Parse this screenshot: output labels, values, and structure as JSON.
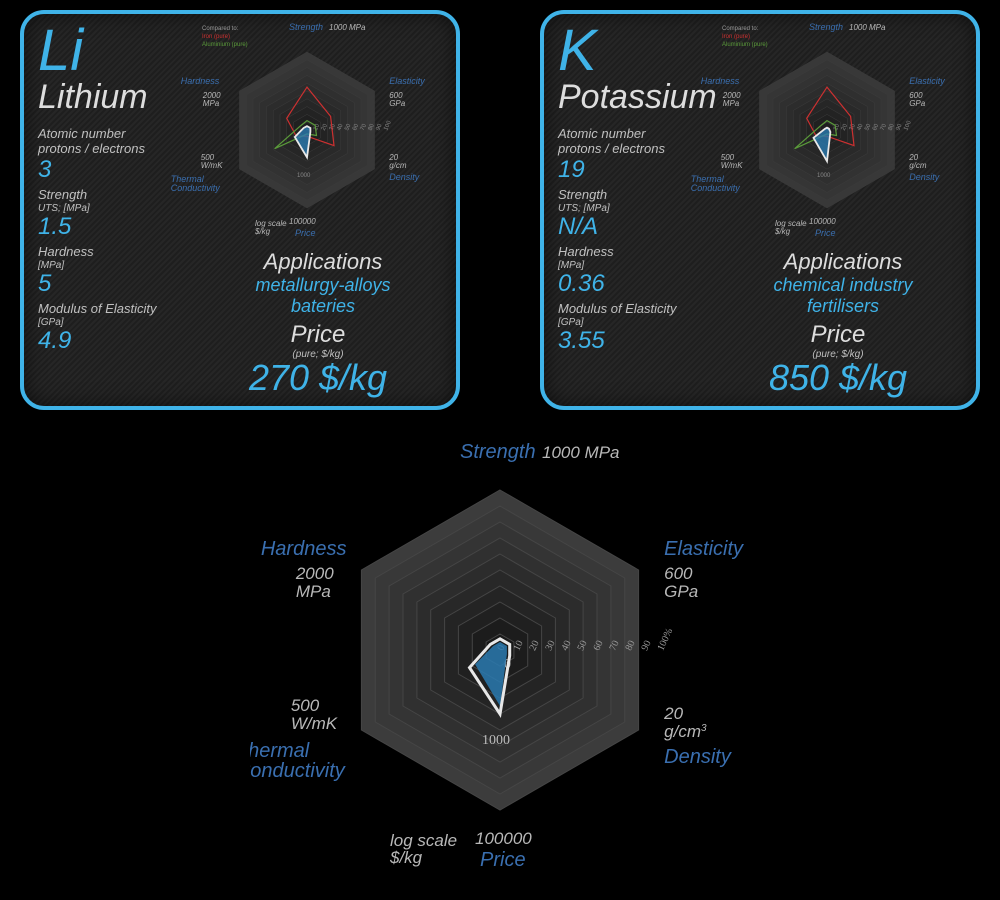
{
  "cards": [
    {
      "symbol": "Li",
      "name": "Lithium",
      "atomic_label": "Atomic number\nprotons / electrons",
      "atomic_value": "3",
      "strength_label": "Strength",
      "strength_unit": "UTS; [MPa]",
      "strength_value": "1.5",
      "hardness_label": "Hardness",
      "hardness_unit": "[MPa]",
      "hardness_value": "5",
      "modulus_label": "Modulus of Elasticity",
      "modulus_unit": "[GPa]",
      "modulus_value": "4.9",
      "applications_title": "Applications",
      "applications_line1": "metallurgy-alloys",
      "applications_line2": "bateries",
      "price_title": "Price",
      "price_sub": "(pure; $/kg)",
      "price_value": "270 $/kg",
      "radar_values": {
        "strength": 5,
        "elasticity": 5,
        "density": 5,
        "price": 35,
        "thermal": 18,
        "hardness": 5
      },
      "comparison_iron": {
        "strength": 55,
        "elasticity": 35,
        "density": 40,
        "price": 8,
        "thermal": 16,
        "hardness": 30
      },
      "comparison_aluminium": {
        "strength": 12,
        "elasticity": 12,
        "density": 14,
        "price": 5,
        "thermal": 48,
        "hardness": 10
      }
    },
    {
      "symbol": "K",
      "name": "Potassium",
      "atomic_label": "Atomic number\nprotons / electrons",
      "atomic_value": "19",
      "strength_label": "Strength",
      "strength_unit": "UTS; [MPa]",
      "strength_value": "N/A",
      "hardness_label": "Hardness",
      "hardness_unit": "[MPa]",
      "hardness_value": "0.36",
      "modulus_label": "Modulus of Elasticity",
      "modulus_unit": "[GPa]",
      "modulus_value": "3.55",
      "applications_title": "Applications",
      "applications_line1": "chemical industry",
      "applications_line2": "fertilisers",
      "price_title": "Price",
      "price_sub": "(pure; $/kg)",
      "price_value": "850 $/kg",
      "radar_values": {
        "strength": 3,
        "elasticity": 3,
        "density": 5,
        "price": 40,
        "thermal": 20,
        "hardness": 3
      },
      "comparison_iron": {
        "strength": 55,
        "elasticity": 35,
        "density": 40,
        "price": 8,
        "thermal": 16,
        "hardness": 30
      },
      "comparison_aluminium": {
        "strength": 12,
        "elasticity": 12,
        "density": 14,
        "price": 5,
        "thermal": 48,
        "hardness": 10
      }
    }
  ],
  "big_radar": {
    "axes": [
      {
        "label": "Strength",
        "unit": "1000 MPa"
      },
      {
        "label": "Elasticity",
        "unit": "600\nGPa"
      },
      {
        "label": "Density",
        "unit": "20\ng/cm"
      },
      {
        "label": "Price",
        "unit": "100000",
        "sub": "log scale\n$/kg"
      },
      {
        "label": "Thermal\nConductivity",
        "unit": "500\nW/mK"
      },
      {
        "label": "Hardness",
        "unit": "2000\nMPa"
      }
    ],
    "scale_ticks": [
      "0",
      "10",
      "20",
      "30",
      "40",
      "50",
      "60",
      "70",
      "80",
      "90",
      "100%"
    ],
    "price_tick": "1000",
    "series_main": {
      "strength": 5,
      "elasticity": 5,
      "density": 5,
      "price": 35,
      "thermal": 18,
      "hardness": 5
    },
    "series_outline": {
      "strength": 7,
      "elasticity": 7,
      "density": 7,
      "price": 40,
      "thermal": 22,
      "hardness": 7
    }
  },
  "colors": {
    "accent": "#3fb3e8",
    "axis_label": "#3a6fb0",
    "text_light": "#dddddd",
    "grid_dark": "#2a2a2a",
    "grid_light": "#4a4a4a",
    "iron": "#cc3030",
    "aluminium": "#5a9a3a",
    "series_fill": "#2a7ab0",
    "series_stroke": "#e8e8e8"
  },
  "legend": {
    "title": "Compared to:",
    "iron": "Iron (pure)",
    "aluminium": "Aluminium (pure)"
  }
}
